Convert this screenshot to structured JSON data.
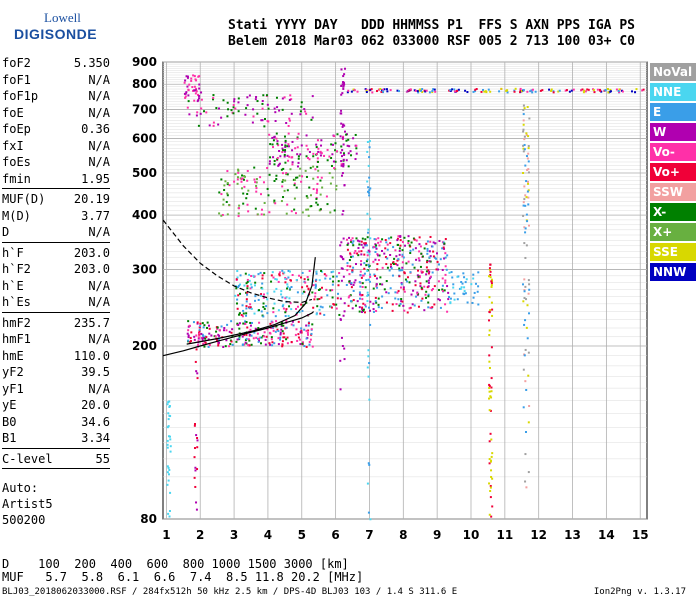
{
  "logo": {
    "top": "Lowell",
    "bottom": "DIGISONDE"
  },
  "header": {
    "line1": "Stati YYYY DAY   DDD HHMMSS P1  FFS S AXN PPS IGA PS",
    "line2": "Belem 2018 Mar03 062 033000 RSF 005 2 713 100 03+ C0"
  },
  "params": [
    {
      "name": "foF2",
      "value": "5.350"
    },
    {
      "name": "foF1",
      "value": "N/A"
    },
    {
      "name": "foF1p",
      "value": "N/A"
    },
    {
      "name": "foE",
      "value": "N/A"
    },
    {
      "name": "foEp",
      "value": "0.36"
    },
    {
      "name": "fxI",
      "value": "N/A"
    },
    {
      "name": "foEs",
      "value": "N/A"
    },
    {
      "name": "fmin",
      "value": "1.95",
      "sep_after": true
    },
    {
      "name": "MUF(D)",
      "value": "20.19"
    },
    {
      "name": "M(D)",
      "value": "3.77"
    },
    {
      "name": "D",
      "value": "N/A",
      "sep_after": true
    },
    {
      "name": "h`F",
      "value": "203.0"
    },
    {
      "name": "h`F2",
      "value": "203.0"
    },
    {
      "name": "h`E",
      "value": "N/A"
    },
    {
      "name": "h`Es",
      "value": "N/A",
      "sep_after": true
    },
    {
      "name": "hmF2",
      "value": "235.7"
    },
    {
      "name": "hmF1",
      "value": "N/A"
    },
    {
      "name": "hmE",
      "value": "110.0"
    },
    {
      "name": "yF2",
      "value": "39.5"
    },
    {
      "name": "yF1",
      "value": "N/A"
    },
    {
      "name": "yE",
      "value": "20.0"
    },
    {
      "name": "B0",
      "value": "34.6"
    },
    {
      "name": "B1",
      "value": "3.34",
      "sep_after": true
    },
    {
      "name": "C-level",
      "value": "55",
      "sep_after": true
    }
  ],
  "auto": {
    "label": "Auto:",
    "name": "Artist5",
    "version": "500200"
  },
  "legend": [
    {
      "label": "NoVal",
      "color": "#a0a0a0"
    },
    {
      "label": "NNE",
      "color": "#4ad6f0"
    },
    {
      "label": "E",
      "color": "#3a9ee8"
    },
    {
      "label": "W",
      "color": "#b000b0"
    },
    {
      "label": "Vo-",
      "color": "#ff30a8"
    },
    {
      "label": "Vo+",
      "color": "#f00038"
    },
    {
      "label": "SSW",
      "color": "#f2a0a0"
    },
    {
      "label": "X-",
      "color": "#008000"
    },
    {
      "label": "X+",
      "color": "#68b040"
    },
    {
      "label": "SSE",
      "color": "#d8d800"
    },
    {
      "label": "NNW",
      "color": "#0000c0"
    }
  ],
  "dmuf": {
    "line1": "D    100  200  400  600  800 1000 1500 3000 [km]",
    "line2": "MUF   5.7  5.8  6.1  6.6  7.4  8.5 11.8 20.2 [MHz]"
  },
  "footer": {
    "left": "BLJ03_2018062033000.RSF / 284fx512h 50 kHz 2.5 km / DPS-4D BLJ03 103 / 1.4 S 311.6 E",
    "right": "Ion2Png v. 1.3.17"
  },
  "chart_data": {
    "type": "scatter",
    "xlabel": "",
    "ylabel": "",
    "xlim": [
      0.9,
      15.2
    ],
    "ylim": [
      80,
      900
    ],
    "y_scale": "log",
    "x_ticks": [
      1,
      2,
      3,
      4,
      5,
      6,
      7,
      8,
      9,
      10,
      11,
      12,
      13,
      14,
      15
    ],
    "y_ticks": [
      80,
      200,
      300,
      400,
      500,
      600,
      700,
      800,
      900
    ],
    "grid": true,
    "traces": [
      {
        "name": "ordinary profile",
        "style": "solid",
        "color": "#000000",
        "points": [
          [
            0.9,
            190
          ],
          [
            1.5,
            195
          ],
          [
            2,
            200
          ],
          [
            2.5,
            205
          ],
          [
            3,
            210
          ],
          [
            3.5,
            215
          ],
          [
            4,
            220
          ],
          [
            4.5,
            226
          ],
          [
            5,
            232
          ],
          [
            5.3,
            238
          ],
          [
            5.35,
            240
          ]
        ]
      },
      {
        "name": "trace",
        "style": "solid",
        "color": "#000000",
        "points": [
          [
            1.6,
            202
          ],
          [
            2.5,
            208
          ],
          [
            3.5,
            216
          ],
          [
            4.2,
            224
          ],
          [
            4.8,
            235
          ],
          [
            5.1,
            250
          ],
          [
            5.3,
            275
          ],
          [
            5.4,
            320
          ]
        ]
      },
      {
        "name": "profile upper",
        "style": "dashed",
        "color": "#000000",
        "points": [
          [
            0.9,
            390
          ],
          [
            1.5,
            340
          ],
          [
            2,
            310
          ],
          [
            2.5,
            290
          ],
          [
            3,
            275
          ],
          [
            3.5,
            265
          ],
          [
            4,
            258
          ],
          [
            4.5,
            253
          ],
          [
            5,
            252
          ],
          [
            5.3,
            256
          ]
        ]
      }
    ]
  }
}
